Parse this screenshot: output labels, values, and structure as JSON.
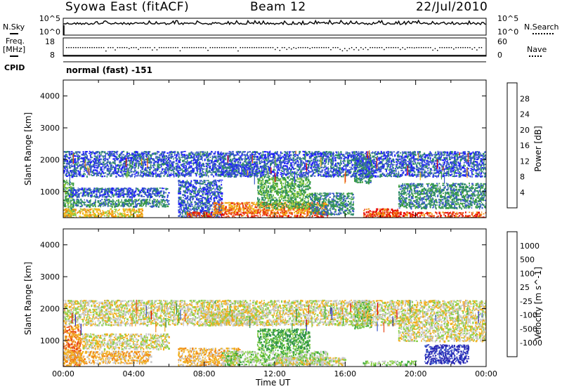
{
  "header": {
    "site": "Syowa East (fitACF)",
    "beam": "Beam 12",
    "date": "22/Jul/2010"
  },
  "sky_panel": {
    "left_label": "N.Sky",
    "right_label": "N.Search",
    "left_ticks": [
      "10^5",
      "10^0"
    ],
    "right_ticks": [
      "10^5",
      "10^0"
    ]
  },
  "freq_panel": {
    "left_label_line1": "Freq.",
    "left_label_line2": "[MHz]",
    "right_label": "Nave",
    "left_ticks": [
      "18",
      "8"
    ],
    "right_ticks": [
      "60",
      "0"
    ]
  },
  "cpid_panel": {
    "label": "CPID",
    "mode_text": "normal (fast) -151"
  },
  "colors": {
    "power": [
      "#1f1fff",
      "#3858c8",
      "#2e8b6a",
      "#3c9e3c",
      "#8ccc3c",
      "#f2b818",
      "#f08c10",
      "#e84010",
      "#e80000"
    ],
    "velocity": [
      "#2828b4",
      "#3a58c8",
      "#2a8a4a",
      "#3ca83a",
      "#8cd04a",
      "#c8c8c8",
      "#f0b020",
      "#f08818",
      "#e84818",
      "#e00000"
    ]
  },
  "chart_data": [
    {
      "type": "heatmap",
      "name": "power",
      "ylabel": "Slant Range [km]",
      "colorbar_label": "Power [dB]",
      "colorbar_ticks": [
        "4",
        "8",
        "12",
        "16",
        "20",
        "24",
        "28"
      ],
      "ylim": [
        180,
        4500
      ],
      "yticks": [
        1000,
        2000,
        3000,
        4000
      ],
      "x_range_hours": [
        0,
        24
      ],
      "blobs": [
        {
          "t0": 0.0,
          "t1": 0.6,
          "r0": 200,
          "r1": 1400,
          "level": 3
        },
        {
          "t0": 0.3,
          "t1": 6.0,
          "r0": 850,
          "r1": 1150,
          "level": 1
        },
        {
          "t0": 0.5,
          "t1": 6.0,
          "r0": 550,
          "r1": 800,
          "level": 2
        },
        {
          "t0": 0.0,
          "t1": 4.5,
          "r0": 200,
          "r1": 500,
          "level": 5
        },
        {
          "t0": 6.5,
          "t1": 9.0,
          "r0": 200,
          "r1": 1400,
          "level": 1
        },
        {
          "t0": 7.0,
          "t1": 15.0,
          "r0": 200,
          "r1": 400,
          "level": 7
        },
        {
          "t0": 8.5,
          "t1": 15.0,
          "r0": 350,
          "r1": 700,
          "level": 6
        },
        {
          "t0": 11.0,
          "t1": 14.0,
          "r0": 500,
          "r1": 1500,
          "level": 3
        },
        {
          "t0": 9.0,
          "t1": 11.0,
          "r0": 1500,
          "r1": 1900,
          "level": 1
        },
        {
          "t0": 14.0,
          "t1": 16.5,
          "r0": 300,
          "r1": 1000,
          "level": 2
        },
        {
          "t0": 16.5,
          "t1": 17.5,
          "r0": 1300,
          "r1": 2200,
          "level": 2
        },
        {
          "t0": 17.0,
          "t1": 19.0,
          "r0": 200,
          "r1": 500,
          "level": 7
        },
        {
          "t0": 18.0,
          "t1": 24.0,
          "r0": 200,
          "r1": 400,
          "level": 7
        },
        {
          "t0": 19.0,
          "t1": 24.0,
          "r0": 500,
          "r1": 1300,
          "level": 2
        },
        {
          "t0": 0.0,
          "t1": 24.0,
          "r0": 1500,
          "r1": 2300,
          "level": 1
        }
      ]
    },
    {
      "type": "heatmap",
      "name": "velocity",
      "ylabel": "Slant Range [km]",
      "colorbar_label": "Velocity [m s^-1]",
      "colorbar_ticks": [
        "-1000",
        "-500",
        "-100",
        "-25",
        "25",
        "100",
        "500",
        "1000"
      ],
      "xlabel": "Time UT",
      "x_ticks": [
        "00:00",
        "04:00",
        "08:00",
        "12:00",
        "16:00",
        "20:00",
        "00:00"
      ],
      "ylim": [
        180,
        4500
      ],
      "yticks": [
        1000,
        2000,
        3000,
        4000
      ],
      "x_range_hours": [
        0,
        24
      ],
      "blobs": [
        {
          "t0": 0.0,
          "t1": 1.0,
          "r0": 200,
          "r1": 1500,
          "level": 7
        },
        {
          "t0": 1.0,
          "t1": 6.0,
          "r0": 750,
          "r1": 1250,
          "level": 5
        },
        {
          "t0": 0.0,
          "t1": 5.0,
          "r0": 300,
          "r1": 700,
          "level": 6
        },
        {
          "t0": 6.5,
          "t1": 10.0,
          "r0": 200,
          "r1": 800,
          "level": 6
        },
        {
          "t0": 9.0,
          "t1": 15.0,
          "r0": 250,
          "r1": 700,
          "level": 4
        },
        {
          "t0": 11.0,
          "t1": 14.0,
          "r0": 700,
          "r1": 1400,
          "level": 3
        },
        {
          "t0": 12.0,
          "t1": 16.0,
          "r0": 250,
          "r1": 500,
          "level": 5
        },
        {
          "t0": 16.5,
          "t1": 17.5,
          "r0": 1400,
          "r1": 2300,
          "level": 3
        },
        {
          "t0": 17.0,
          "t1": 20.0,
          "r0": 250,
          "r1": 400,
          "level": 4
        },
        {
          "t0": 20.5,
          "t1": 23.0,
          "r0": 300,
          "r1": 900,
          "level": 0
        },
        {
          "t0": 19.0,
          "t1": 24.0,
          "r0": 1000,
          "r1": 1500,
          "level": 5
        },
        {
          "t0": 8.0,
          "t1": 11.0,
          "r0": 1500,
          "r1": 2000,
          "level": 5
        },
        {
          "t0": 0.0,
          "t1": 24.0,
          "r0": 1500,
          "r1": 2300,
          "level": 5
        }
      ]
    }
  ]
}
